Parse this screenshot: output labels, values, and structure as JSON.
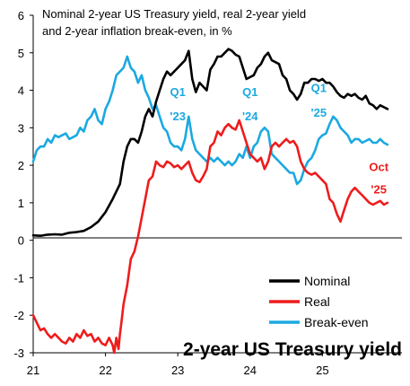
{
  "chart_data": {
    "type": "line",
    "title_line1": "Nominal 2-year US Treasury yield, real 2-year yield",
    "title_line2": "and 2-year inflation break-even, in %",
    "chart_label": "2-year US Treasury yield",
    "xlim": [
      21.0,
      26.1
    ],
    "ylim": [
      -3,
      6
    ],
    "x_ticks": [
      {
        "value": 21,
        "label": "21"
      },
      {
        "value": 22,
        "label": "22"
      },
      {
        "value": 23,
        "label": "23"
      },
      {
        "value": 24,
        "label": "24"
      },
      {
        "value": 25,
        "label": "25"
      }
    ],
    "y_ticks": [
      {
        "value": 6,
        "label": "6"
      },
      {
        "value": 5,
        "label": "5"
      },
      {
        "value": 4,
        "label": "4"
      },
      {
        "value": 3,
        "label": "3"
      },
      {
        "value": 2,
        "label": "2"
      },
      {
        "value": 1,
        "label": "1"
      },
      {
        "value": 0,
        "label": "0"
      },
      {
        "value": -1,
        "label": "-1"
      },
      {
        "value": -2,
        "label": "-2"
      },
      {
        "value": -3,
        "label": "-3"
      }
    ],
    "grid": false,
    "legend_position": "bottom-right",
    "series": [
      {
        "name": "Nominal",
        "color": "#000000",
        "points": [
          [
            21.0,
            0.13
          ],
          [
            21.1,
            0.12
          ],
          [
            21.2,
            0.15
          ],
          [
            21.3,
            0.16
          ],
          [
            21.4,
            0.15
          ],
          [
            21.5,
            0.2
          ],
          [
            21.6,
            0.22
          ],
          [
            21.7,
            0.25
          ],
          [
            21.8,
            0.35
          ],
          [
            21.9,
            0.5
          ],
          [
            22.0,
            0.75
          ],
          [
            22.1,
            1.1
          ],
          [
            22.2,
            1.5
          ],
          [
            22.25,
            2.1
          ],
          [
            22.3,
            2.5
          ],
          [
            22.35,
            2.7
          ],
          [
            22.4,
            2.7
          ],
          [
            22.45,
            2.6
          ],
          [
            22.5,
            2.9
          ],
          [
            22.55,
            3.3
          ],
          [
            22.6,
            3.5
          ],
          [
            22.65,
            3.3
          ],
          [
            22.7,
            3.7
          ],
          [
            22.75,
            4.0
          ],
          [
            22.8,
            4.3
          ],
          [
            22.85,
            4.5
          ],
          [
            22.9,
            4.4
          ],
          [
            22.95,
            4.5
          ],
          [
            23.0,
            4.6
          ],
          [
            23.05,
            4.7
          ],
          [
            23.1,
            4.8
          ],
          [
            23.15,
            5.05
          ],
          [
            23.2,
            4.3
          ],
          [
            23.25,
            3.95
          ],
          [
            23.3,
            4.2
          ],
          [
            23.35,
            4.1
          ],
          [
            23.4,
            4.0
          ],
          [
            23.45,
            4.55
          ],
          [
            23.5,
            4.7
          ],
          [
            23.55,
            4.9
          ],
          [
            23.6,
            4.9
          ],
          [
            23.65,
            5.0
          ],
          [
            23.7,
            5.1
          ],
          [
            23.75,
            5.05
          ],
          [
            23.8,
            4.95
          ],
          [
            23.85,
            4.9
          ],
          [
            23.9,
            4.6
          ],
          [
            23.95,
            4.3
          ],
          [
            24.0,
            4.35
          ],
          [
            24.05,
            4.4
          ],
          [
            24.1,
            4.6
          ],
          [
            24.15,
            4.7
          ],
          [
            24.2,
            4.9
          ],
          [
            24.25,
            5.0
          ],
          [
            24.3,
            4.8
          ],
          [
            24.35,
            4.75
          ],
          [
            24.4,
            4.7
          ],
          [
            24.45,
            4.4
          ],
          [
            24.5,
            4.3
          ],
          [
            24.55,
            4.0
          ],
          [
            24.6,
            3.9
          ],
          [
            24.65,
            3.75
          ],
          [
            24.7,
            3.9
          ],
          [
            24.75,
            4.2
          ],
          [
            24.8,
            4.2
          ],
          [
            24.85,
            4.3
          ],
          [
            24.9,
            4.3
          ],
          [
            24.95,
            4.25
          ],
          [
            25.0,
            4.3
          ],
          [
            25.05,
            4.2
          ],
          [
            25.1,
            4.2
          ],
          [
            25.15,
            4.1
          ],
          [
            25.2,
            3.95
          ],
          [
            25.25,
            3.85
          ],
          [
            25.3,
            3.8
          ],
          [
            25.35,
            3.9
          ],
          [
            25.4,
            3.85
          ],
          [
            25.45,
            3.9
          ],
          [
            25.5,
            3.8
          ],
          [
            25.55,
            3.75
          ],
          [
            25.6,
            3.85
          ],
          [
            25.65,
            3.65
          ],
          [
            25.7,
            3.6
          ],
          [
            25.75,
            3.5
          ],
          [
            25.8,
            3.6
          ],
          [
            25.85,
            3.55
          ],
          [
            25.9,
            3.5
          ]
        ]
      },
      {
        "name": "Real",
        "color": "#ee1c1c",
        "points": [
          [
            21.0,
            -2.0
          ],
          [
            21.05,
            -2.2
          ],
          [
            21.1,
            -2.4
          ],
          [
            21.15,
            -2.35
          ],
          [
            21.2,
            -2.5
          ],
          [
            21.25,
            -2.6
          ],
          [
            21.3,
            -2.5
          ],
          [
            21.35,
            -2.6
          ],
          [
            21.4,
            -2.7
          ],
          [
            21.45,
            -2.75
          ],
          [
            21.5,
            -2.6
          ],
          [
            21.55,
            -2.7
          ],
          [
            21.6,
            -2.5
          ],
          [
            21.65,
            -2.6
          ],
          [
            21.7,
            -2.4
          ],
          [
            21.75,
            -2.55
          ],
          [
            21.8,
            -2.5
          ],
          [
            21.85,
            -2.7
          ],
          [
            21.9,
            -2.6
          ],
          [
            21.95,
            -2.75
          ],
          [
            22.0,
            -2.8
          ],
          [
            22.05,
            -2.6
          ],
          [
            22.1,
            -2.8
          ],
          [
            22.12,
            -3.0
          ],
          [
            22.15,
            -2.6
          ],
          [
            22.18,
            -2.9
          ],
          [
            22.2,
            -2.5
          ],
          [
            22.22,
            -2.2
          ],
          [
            22.25,
            -1.7
          ],
          [
            22.3,
            -1.2
          ],
          [
            22.35,
            -0.5
          ],
          [
            22.4,
            -0.3
          ],
          [
            22.45,
            0.1
          ],
          [
            22.5,
            0.6
          ],
          [
            22.55,
            1.1
          ],
          [
            22.6,
            1.6
          ],
          [
            22.65,
            1.7
          ],
          [
            22.7,
            2.1
          ],
          [
            22.75,
            2.0
          ],
          [
            22.8,
            1.95
          ],
          [
            22.85,
            2.1
          ],
          [
            22.9,
            2.05
          ],
          [
            22.95,
            1.95
          ],
          [
            23.0,
            2.0
          ],
          [
            23.05,
            1.9
          ],
          [
            23.1,
            2.0
          ],
          [
            23.15,
            2.1
          ],
          [
            23.2,
            1.8
          ],
          [
            23.25,
            1.6
          ],
          [
            23.3,
            1.55
          ],
          [
            23.35,
            1.7
          ],
          [
            23.4,
            1.9
          ],
          [
            23.45,
            2.5
          ],
          [
            23.5,
            2.6
          ],
          [
            23.55,
            2.9
          ],
          [
            23.6,
            2.8
          ],
          [
            23.65,
            3.0
          ],
          [
            23.7,
            3.1
          ],
          [
            23.75,
            3.0
          ],
          [
            23.8,
            2.95
          ],
          [
            23.85,
            3.2
          ],
          [
            23.9,
            2.9
          ],
          [
            23.95,
            2.6
          ],
          [
            24.0,
            2.3
          ],
          [
            24.05,
            2.2
          ],
          [
            24.1,
            2.1
          ],
          [
            24.15,
            2.2
          ],
          [
            24.2,
            1.9
          ],
          [
            24.25,
            2.1
          ],
          [
            24.3,
            2.5
          ],
          [
            24.35,
            2.6
          ],
          [
            24.4,
            2.5
          ],
          [
            24.45,
            2.6
          ],
          [
            24.5,
            2.7
          ],
          [
            24.55,
            2.6
          ],
          [
            24.6,
            2.65
          ],
          [
            24.65,
            2.5
          ],
          [
            24.7,
            2.1
          ],
          [
            24.75,
            1.9
          ],
          [
            24.8,
            1.8
          ],
          [
            24.85,
            1.75
          ],
          [
            24.9,
            1.8
          ],
          [
            24.95,
            1.7
          ],
          [
            25.0,
            1.6
          ],
          [
            25.05,
            1.5
          ],
          [
            25.1,
            1.1
          ],
          [
            25.15,
            1.0
          ],
          [
            25.2,
            0.7
          ],
          [
            25.25,
            0.5
          ],
          [
            25.3,
            0.8
          ],
          [
            25.35,
            1.1
          ],
          [
            25.4,
            1.3
          ],
          [
            25.45,
            1.4
          ],
          [
            25.5,
            1.3
          ],
          [
            25.55,
            1.2
          ],
          [
            25.6,
            1.1
          ],
          [
            25.65,
            1.0
          ],
          [
            25.7,
            0.95
          ],
          [
            25.75,
            1.0
          ],
          [
            25.8,
            1.05
          ],
          [
            25.85,
            0.95
          ],
          [
            25.9,
            1.0
          ]
        ]
      },
      {
        "name": "Break-even",
        "color": "#1ba9e1",
        "points": [
          [
            21.0,
            2.1
          ],
          [
            21.05,
            2.4
          ],
          [
            21.1,
            2.5
          ],
          [
            21.15,
            2.5
          ],
          [
            21.2,
            2.7
          ],
          [
            21.25,
            2.6
          ],
          [
            21.3,
            2.8
          ],
          [
            21.35,
            2.75
          ],
          [
            21.4,
            2.8
          ],
          [
            21.45,
            2.85
          ],
          [
            21.5,
            2.7
          ],
          [
            21.55,
            2.75
          ],
          [
            21.6,
            2.8
          ],
          [
            21.65,
            3.0
          ],
          [
            21.7,
            2.9
          ],
          [
            21.75,
            3.2
          ],
          [
            21.8,
            3.3
          ],
          [
            21.85,
            3.5
          ],
          [
            21.9,
            3.2
          ],
          [
            21.95,
            3.1
          ],
          [
            22.0,
            3.5
          ],
          [
            22.05,
            3.7
          ],
          [
            22.1,
            4.0
          ],
          [
            22.15,
            4.4
          ],
          [
            22.2,
            4.5
          ],
          [
            22.25,
            4.6
          ],
          [
            22.3,
            4.9
          ],
          [
            22.35,
            4.6
          ],
          [
            22.4,
            4.5
          ],
          [
            22.45,
            4.2
          ],
          [
            22.5,
            4.4
          ],
          [
            22.55,
            4.0
          ],
          [
            22.6,
            3.8
          ],
          [
            22.65,
            3.5
          ],
          [
            22.7,
            3.6
          ],
          [
            22.75,
            3.3
          ],
          [
            22.8,
            3.0
          ],
          [
            22.85,
            2.9
          ],
          [
            22.9,
            2.6
          ],
          [
            22.95,
            2.5
          ],
          [
            23.0,
            2.5
          ],
          [
            23.05,
            2.4
          ],
          [
            23.1,
            2.7
          ],
          [
            23.15,
            3.3
          ],
          [
            23.2,
            2.7
          ],
          [
            23.25,
            2.4
          ],
          [
            23.3,
            2.3
          ],
          [
            23.35,
            2.2
          ],
          [
            23.4,
            2.1
          ],
          [
            23.45,
            2.2
          ],
          [
            23.5,
            2.1
          ],
          [
            23.55,
            2.2
          ],
          [
            23.6,
            2.1
          ],
          [
            23.65,
            2.0
          ],
          [
            23.7,
            2.1
          ],
          [
            23.75,
            2.0
          ],
          [
            23.8,
            2.1
          ],
          [
            23.85,
            2.3
          ],
          [
            23.9,
            2.2
          ],
          [
            23.95,
            2.5
          ],
          [
            24.0,
            2.2
          ],
          [
            24.05,
            2.5
          ],
          [
            24.1,
            2.6
          ],
          [
            24.15,
            2.9
          ],
          [
            24.2,
            3.0
          ],
          [
            24.25,
            2.9
          ],
          [
            24.3,
            2.3
          ],
          [
            24.35,
            2.2
          ],
          [
            24.4,
            2.1
          ],
          [
            24.45,
            2.0
          ],
          [
            24.5,
            1.9
          ],
          [
            24.55,
            1.8
          ],
          [
            24.6,
            1.8
          ],
          [
            24.65,
            1.5
          ],
          [
            24.7,
            1.6
          ],
          [
            24.75,
            1.9
          ],
          [
            24.8,
            2.1
          ],
          [
            24.85,
            2.2
          ],
          [
            24.9,
            2.4
          ],
          [
            24.95,
            2.7
          ],
          [
            25.0,
            2.8
          ],
          [
            25.05,
            2.85
          ],
          [
            25.1,
            3.1
          ],
          [
            25.15,
            3.3
          ],
          [
            25.2,
            3.2
          ],
          [
            25.25,
            3.0
          ],
          [
            25.3,
            2.9
          ],
          [
            25.35,
            2.8
          ],
          [
            25.4,
            2.6
          ],
          [
            25.45,
            2.7
          ],
          [
            25.5,
            2.7
          ],
          [
            25.55,
            2.6
          ],
          [
            25.6,
            2.65
          ],
          [
            25.65,
            2.7
          ],
          [
            25.7,
            2.6
          ],
          [
            25.75,
            2.6
          ],
          [
            25.8,
            2.7
          ],
          [
            25.85,
            2.6
          ],
          [
            25.9,
            2.55
          ]
        ]
      }
    ],
    "annotations": [
      {
        "text": "Q1",
        "x": 23.0,
        "y": 3.85,
        "color": "#1ba9e1"
      },
      {
        "text": "'23",
        "x": 23.0,
        "y": 3.2,
        "color": "#1ba9e1"
      },
      {
        "text": "Q1",
        "x": 24.0,
        "y": 3.85,
        "color": "#1ba9e1"
      },
      {
        "text": "'24",
        "x": 24.0,
        "y": 3.2,
        "color": "#1ba9e1"
      },
      {
        "text": "Q1",
        "x": 24.95,
        "y": 3.95,
        "color": "#1ba9e1"
      },
      {
        "text": "'25",
        "x": 24.95,
        "y": 3.3,
        "color": "#1ba9e1"
      },
      {
        "text": "Oct",
        "x": 25.78,
        "y": 1.85,
        "color": "#ee1c1c"
      },
      {
        "text": "'25",
        "x": 25.78,
        "y": 1.25,
        "color": "#ee1c1c"
      }
    ]
  }
}
